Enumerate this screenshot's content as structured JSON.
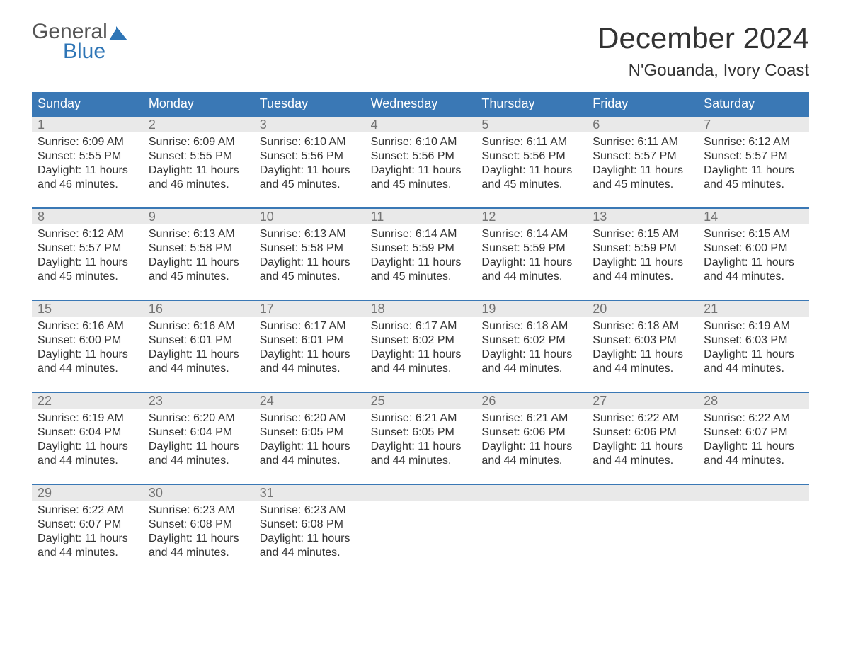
{
  "colors": {
    "header_bg": "#3a78b5",
    "header_text": "#ffffff",
    "daynum_bg": "#e9e9e9",
    "daynum_text": "#727272",
    "body_text": "#333333",
    "logo_gray": "#555555",
    "logo_blue": "#2e75b6",
    "week_border": "#3a78b5",
    "page_bg": "#ffffff"
  },
  "fonts": {
    "family": "Arial, Helvetica, sans-serif",
    "month_title_size_pt": 32,
    "location_size_pt": 18,
    "header_size_pt": 14,
    "daynum_size_pt": 14,
    "body_size_pt": 12
  },
  "logo": {
    "line1": "General",
    "line2": "Blue"
  },
  "title": "December 2024",
  "location": "N'Gouanda, Ivory Coast",
  "day_headers": [
    "Sunday",
    "Monday",
    "Tuesday",
    "Wednesday",
    "Thursday",
    "Friday",
    "Saturday"
  ],
  "labels": {
    "sunrise": "Sunrise:",
    "sunset": "Sunset:",
    "daylight": "Daylight:"
  },
  "weeks": [
    [
      {
        "num": "1",
        "sunrise": "6:09 AM",
        "sunset": "5:55 PM",
        "dl1": "11 hours",
        "dl2": "and 46 minutes."
      },
      {
        "num": "2",
        "sunrise": "6:09 AM",
        "sunset": "5:55 PM",
        "dl1": "11 hours",
        "dl2": "and 46 minutes."
      },
      {
        "num": "3",
        "sunrise": "6:10 AM",
        "sunset": "5:56 PM",
        "dl1": "11 hours",
        "dl2": "and 45 minutes."
      },
      {
        "num": "4",
        "sunrise": "6:10 AM",
        "sunset": "5:56 PM",
        "dl1": "11 hours",
        "dl2": "and 45 minutes."
      },
      {
        "num": "5",
        "sunrise": "6:11 AM",
        "sunset": "5:56 PM",
        "dl1": "11 hours",
        "dl2": "and 45 minutes."
      },
      {
        "num": "6",
        "sunrise": "6:11 AM",
        "sunset": "5:57 PM",
        "dl1": "11 hours",
        "dl2": "and 45 minutes."
      },
      {
        "num": "7",
        "sunrise": "6:12 AM",
        "sunset": "5:57 PM",
        "dl1": "11 hours",
        "dl2": "and 45 minutes."
      }
    ],
    [
      {
        "num": "8",
        "sunrise": "6:12 AM",
        "sunset": "5:57 PM",
        "dl1": "11 hours",
        "dl2": "and 45 minutes."
      },
      {
        "num": "9",
        "sunrise": "6:13 AM",
        "sunset": "5:58 PM",
        "dl1": "11 hours",
        "dl2": "and 45 minutes."
      },
      {
        "num": "10",
        "sunrise": "6:13 AM",
        "sunset": "5:58 PM",
        "dl1": "11 hours",
        "dl2": "and 45 minutes."
      },
      {
        "num": "11",
        "sunrise": "6:14 AM",
        "sunset": "5:59 PM",
        "dl1": "11 hours",
        "dl2": "and 45 minutes."
      },
      {
        "num": "12",
        "sunrise": "6:14 AM",
        "sunset": "5:59 PM",
        "dl1": "11 hours",
        "dl2": "and 44 minutes."
      },
      {
        "num": "13",
        "sunrise": "6:15 AM",
        "sunset": "5:59 PM",
        "dl1": "11 hours",
        "dl2": "and 44 minutes."
      },
      {
        "num": "14",
        "sunrise": "6:15 AM",
        "sunset": "6:00 PM",
        "dl1": "11 hours",
        "dl2": "and 44 minutes."
      }
    ],
    [
      {
        "num": "15",
        "sunrise": "6:16 AM",
        "sunset": "6:00 PM",
        "dl1": "11 hours",
        "dl2": "and 44 minutes."
      },
      {
        "num": "16",
        "sunrise": "6:16 AM",
        "sunset": "6:01 PM",
        "dl1": "11 hours",
        "dl2": "and 44 minutes."
      },
      {
        "num": "17",
        "sunrise": "6:17 AM",
        "sunset": "6:01 PM",
        "dl1": "11 hours",
        "dl2": "and 44 minutes."
      },
      {
        "num": "18",
        "sunrise": "6:17 AM",
        "sunset": "6:02 PM",
        "dl1": "11 hours",
        "dl2": "and 44 minutes."
      },
      {
        "num": "19",
        "sunrise": "6:18 AM",
        "sunset": "6:02 PM",
        "dl1": "11 hours",
        "dl2": "and 44 minutes."
      },
      {
        "num": "20",
        "sunrise": "6:18 AM",
        "sunset": "6:03 PM",
        "dl1": "11 hours",
        "dl2": "and 44 minutes."
      },
      {
        "num": "21",
        "sunrise": "6:19 AM",
        "sunset": "6:03 PM",
        "dl1": "11 hours",
        "dl2": "and 44 minutes."
      }
    ],
    [
      {
        "num": "22",
        "sunrise": "6:19 AM",
        "sunset": "6:04 PM",
        "dl1": "11 hours",
        "dl2": "and 44 minutes."
      },
      {
        "num": "23",
        "sunrise": "6:20 AM",
        "sunset": "6:04 PM",
        "dl1": "11 hours",
        "dl2": "and 44 minutes."
      },
      {
        "num": "24",
        "sunrise": "6:20 AM",
        "sunset": "6:05 PM",
        "dl1": "11 hours",
        "dl2": "and 44 minutes."
      },
      {
        "num": "25",
        "sunrise": "6:21 AM",
        "sunset": "6:05 PM",
        "dl1": "11 hours",
        "dl2": "and 44 minutes."
      },
      {
        "num": "26",
        "sunrise": "6:21 AM",
        "sunset": "6:06 PM",
        "dl1": "11 hours",
        "dl2": "and 44 minutes."
      },
      {
        "num": "27",
        "sunrise": "6:22 AM",
        "sunset": "6:06 PM",
        "dl1": "11 hours",
        "dl2": "and 44 minutes."
      },
      {
        "num": "28",
        "sunrise": "6:22 AM",
        "sunset": "6:07 PM",
        "dl1": "11 hours",
        "dl2": "and 44 minutes."
      }
    ],
    [
      {
        "num": "29",
        "sunrise": "6:22 AM",
        "sunset": "6:07 PM",
        "dl1": "11 hours",
        "dl2": "and 44 minutes."
      },
      {
        "num": "30",
        "sunrise": "6:23 AM",
        "sunset": "6:08 PM",
        "dl1": "11 hours",
        "dl2": "and 44 minutes."
      },
      {
        "num": "31",
        "sunrise": "6:23 AM",
        "sunset": "6:08 PM",
        "dl1": "11 hours",
        "dl2": "and 44 minutes."
      },
      null,
      null,
      null,
      null
    ]
  ]
}
